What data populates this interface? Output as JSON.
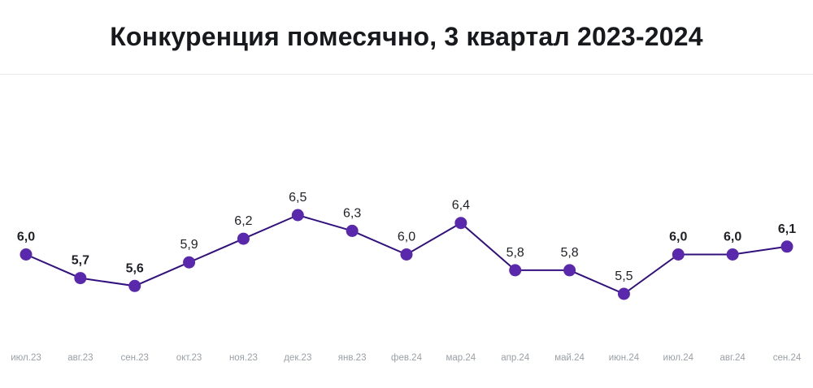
{
  "header": {
    "title": "Конкуренция помесячно, 3 квартал 2023-2024"
  },
  "chart_data": {
    "type": "line",
    "title": "Конкуренция помесячно, 3 квартал 2023-2024",
    "categories": [
      "июл.23",
      "авг.23",
      "сен.23",
      "окт.23",
      "ноя.23",
      "дек.23",
      "янв.23",
      "фев.24",
      "мар.24",
      "апр.24",
      "май.24",
      "июн.24",
      "июл.24",
      "авг.24",
      "сен.24"
    ],
    "values": [
      6.0,
      5.7,
      5.6,
      5.9,
      6.2,
      6.5,
      6.3,
      6.0,
      6.4,
      5.8,
      5.8,
      5.5,
      6.0,
      6.0,
      6.1
    ],
    "point_labels": [
      "6,0",
      "5,7",
      "5,6",
      "5,9",
      "6,2",
      "6,5",
      "6,3",
      "6,0",
      "6,4",
      "5,8",
      "5,8",
      "5,5",
      "6,0",
      "6,0",
      "6,1"
    ],
    "bold_points": [
      true,
      true,
      true,
      false,
      false,
      false,
      false,
      false,
      false,
      false,
      false,
      false,
      true,
      true,
      true
    ],
    "xlabel": "",
    "ylabel": "",
    "ylim": [
      5.5,
      6.5
    ],
    "grid": false,
    "legend": false,
    "y_axis_shown": false,
    "colors": {
      "background": "#ffffff",
      "title": "#18191d",
      "divider": "#e8e8ea",
      "line": "#32117e",
      "point": "#5a28ad",
      "point_label": "#1f2126",
      "tick_label": "#9aa0a6"
    }
  }
}
